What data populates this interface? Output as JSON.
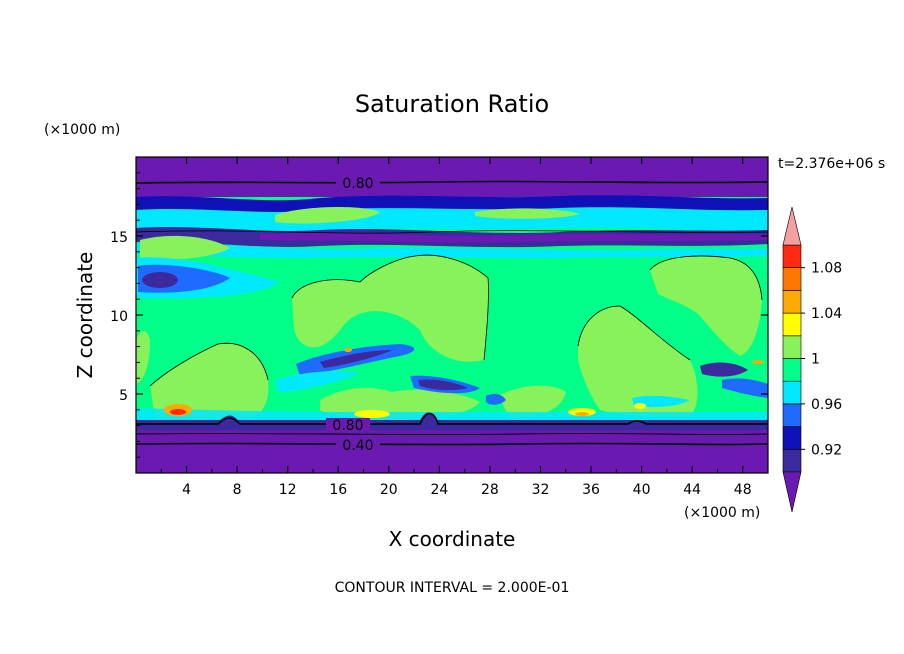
{
  "chart_data": {
    "type": "heatmap",
    "title": "Saturation Ratio",
    "xlabel": "X coordinate",
    "ylabel": "Z coordinate",
    "x_unit": "(×1000 m)",
    "y_unit": "(×1000 m)",
    "time_label": "t=2.376e+06 s",
    "footer": "CONTOUR INTERVAL = 2.000E-01",
    "xlim": [
      0,
      50
    ],
    "ylim": [
      0,
      20
    ],
    "x_ticks": [
      "4",
      "8",
      "12",
      "16",
      "20",
      "24",
      "28",
      "32",
      "36",
      "40",
      "44",
      "48"
    ],
    "y_ticks": [
      "5",
      "10",
      "15"
    ],
    "contour_labels": [
      {
        "text": "0.80",
        "x": 17.5,
        "z": 18.2
      },
      {
        "text": "0.80",
        "x": 16.0,
        "z": 2.9
      },
      {
        "text": "0.40",
        "x": 17.0,
        "z": 1.8
      }
    ],
    "colorbar": {
      "levels": [
        0.9,
        0.92,
        0.94,
        0.96,
        0.98,
        1.0,
        1.02,
        1.04,
        1.06,
        1.08,
        1.1
      ],
      "labels": [
        "0.92",
        "0.96",
        "1",
        "1.04",
        "1.08"
      ],
      "colors": [
        "#3a2a9e",
        "#0f10b8",
        "#1f6bff",
        "#00e8ff",
        "#00ff88",
        "#88f25a",
        "#ffff00",
        "#ffaa00",
        "#ff7700",
        "#ff2a10"
      ],
      "under_color": "#6a1ab0",
      "over_color": "#f4a0a0"
    }
  }
}
